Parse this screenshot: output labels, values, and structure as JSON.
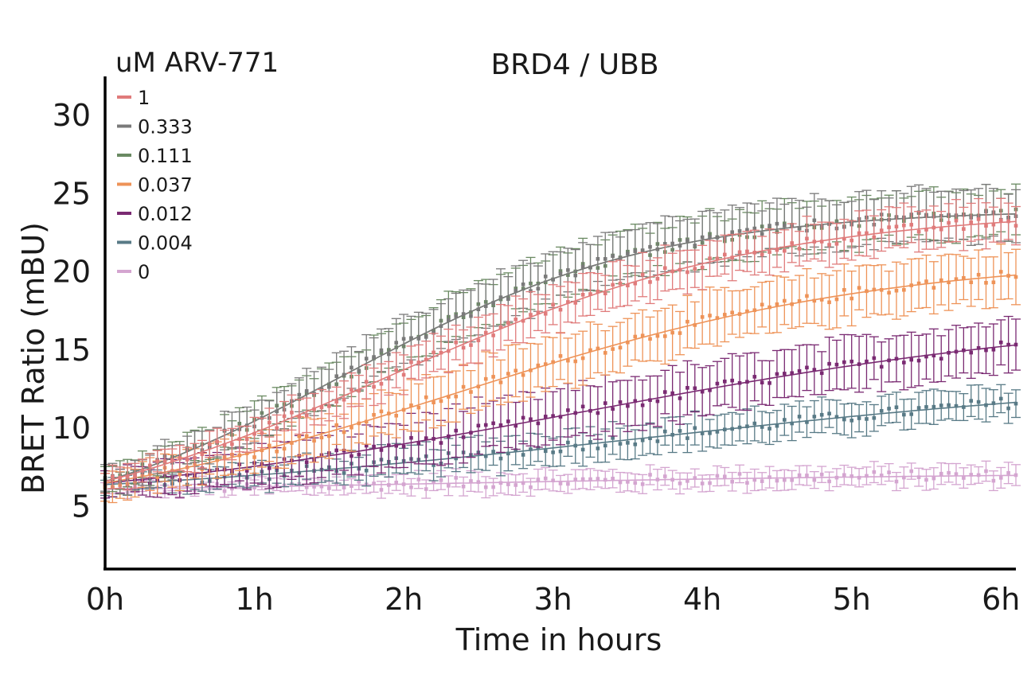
{
  "chart_data": {
    "type": "line",
    "title": "BRD4 / UBB",
    "xlabel": "Time in hours",
    "ylabel": "BRET Ratio (mBU)",
    "legend_title": "uM ARV-771",
    "legend_position": "top-left",
    "grid": false,
    "x_unit": "hours",
    "xlim": [
      0,
      6.1
    ],
    "ylim": [
      1,
      32.5
    ],
    "x_ticks": [
      0,
      1,
      2,
      3,
      4,
      5,
      6
    ],
    "x_tick_labels": [
      "0h",
      "1h",
      "2h",
      "3h",
      "4h",
      "5h",
      "6h"
    ],
    "y_ticks": [
      5,
      10,
      15,
      20,
      25,
      30
    ],
    "y_tick_labels": [
      "5",
      "10",
      "15",
      "20",
      "25",
      "30"
    ],
    "sample_interval_hours": 0.05,
    "series": [
      {
        "name": "1",
        "color": "#e07b7b",
        "start": 6.6,
        "plateau": 24.0,
        "rate": 0.78,
        "midpoint": 1.9,
        "error": 1.3
      },
      {
        "name": "0.333",
        "color": "#7a7a7a",
        "start": 6.6,
        "plateau": 24.0,
        "rate": 0.95,
        "midpoint": 1.6,
        "error": 1.6
      },
      {
        "name": "0.111",
        "color": "#6a8a62",
        "start": 6.6,
        "plateau": 24.0,
        "rate": 0.95,
        "midpoint": 1.6,
        "error": 1.5
      },
      {
        "name": "0.037",
        "color": "#ee9358",
        "start": 6.5,
        "plateau": 21.0,
        "rate": 0.7,
        "midpoint": 2.4,
        "error": 1.6
      },
      {
        "name": "0.012",
        "color": "#7a2a72",
        "start": 6.5,
        "plateau": 17.5,
        "rate": 0.55,
        "midpoint": 3.2,
        "error": 1.6
      },
      {
        "name": "0.004",
        "color": "#587a86",
        "start": 6.4,
        "plateau": 13.5,
        "rate": 0.5,
        "midpoint": 3.6,
        "error": 1.0
      },
      {
        "name": "0",
        "color": "#d4a5d0",
        "start": 6.1,
        "plateau": 7.2,
        "rate": 0.45,
        "midpoint": 2.0,
        "error": 0.6
      }
    ]
  }
}
